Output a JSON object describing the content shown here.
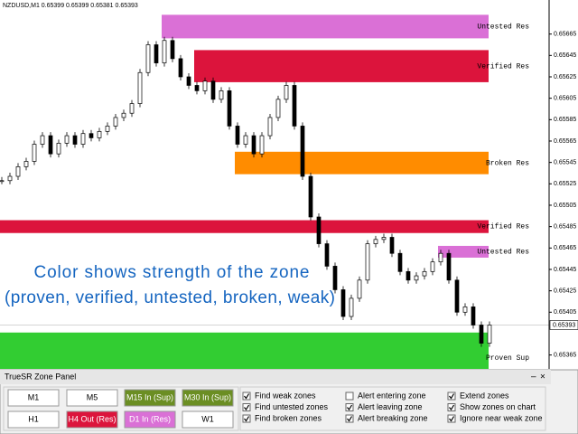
{
  "header": "NZDUSD,M1  0.65399 0.65399 0.65381 0.65393",
  "annotation": [
    "Color shows strength of the zone",
    "(proven, verified, untested, broken, weak)"
  ],
  "chart": {
    "type": "candlestick",
    "ylim": [
      0.65352,
      0.65685
    ],
    "yticks": [
      0.65665,
      0.65645,
      0.65625,
      0.65605,
      0.65585,
      0.65565,
      0.65545,
      0.65525,
      0.65505,
      0.65485,
      0.65465,
      0.65445,
      0.65425,
      0.65405,
      0.65365
    ],
    "last_price": 0.65393,
    "closes": [
      0.65528,
      0.65532,
      0.65541,
      0.65546,
      0.65562,
      0.6557,
      0.65553,
      0.65563,
      0.6557,
      0.65562,
      0.65572,
      0.65568,
      0.65574,
      0.65579,
      0.65587,
      0.65591,
      0.656,
      0.65629,
      0.65655,
      0.65638,
      0.65659,
      0.65642,
      0.65625,
      0.65617,
      0.65612,
      0.65621,
      0.65604,
      0.65612,
      0.65579,
      0.65562,
      0.6557,
      0.65553,
      0.6557,
      0.65587,
      0.65604,
      0.65617,
      0.65579,
      0.65532,
      0.65494,
      0.65469,
      0.65448,
      0.65426,
      0.65401,
      0.65418,
      0.65435,
      0.65469,
      0.65473,
      0.65475,
      0.6546,
      0.65443,
      0.65435,
      0.65439,
      0.65443,
      0.65452,
      0.6546,
      0.65435,
      0.65405,
      0.6541,
      0.65393,
      0.65376,
      0.65393
    ],
    "zones": [
      {
        "label": "Untested Res",
        "color": "#da70d6",
        "low": 0.65661,
        "high": 0.65683,
        "from": 20
      },
      {
        "label": "Verified Res",
        "color": "#dc143c",
        "low": 0.6562,
        "high": 0.6565,
        "from": 24
      },
      {
        "label": "Broken Res",
        "color": "#ff8c00",
        "low": 0.65534,
        "high": 0.65555,
        "from": 29
      },
      {
        "label": "Verified Res",
        "color": "#dc143c",
        "low": 0.65479,
        "high": 0.65491,
        "from": 0
      },
      {
        "label": "Untested Res",
        "color": "#da70d6",
        "low": 0.65456,
        "high": 0.65467,
        "from": 54
      },
      {
        "label": "Proven Sup",
        "color": "#32cd32",
        "low": 0.65352,
        "high": 0.65386,
        "from": 0
      }
    ]
  },
  "panel": {
    "title": "TrueSR Zone Panel",
    "buttons": [
      [
        {
          "label": "M1"
        },
        {
          "label": "M5"
        },
        {
          "label": "M15 In (Sup)",
          "color": "#6b8e23"
        },
        {
          "label": "M30 In (Sup)",
          "color": "#6b8e23"
        }
      ],
      [
        {
          "label": "H1"
        },
        {
          "label": "H4 Out (Res)",
          "color": "#dc143c"
        },
        {
          "label": "D1 In (Res)",
          "color": "#da70d6"
        },
        {
          "label": "W1"
        }
      ]
    ],
    "options": [
      [
        {
          "label": "Find weak zones",
          "checked": true
        },
        {
          "label": "Find untested zones",
          "checked": true
        },
        {
          "label": "Find broken zones",
          "checked": true
        }
      ],
      [
        {
          "label": "Alert entering zone",
          "checked": false
        },
        {
          "label": "Alert leaving zone",
          "checked": true
        },
        {
          "label": "Alert breaking zone",
          "checked": true
        }
      ],
      [
        {
          "label": "Extend zones",
          "checked": true
        },
        {
          "label": "Show zones on chart",
          "checked": true
        },
        {
          "label": "Ignore near weak zone",
          "checked": true
        }
      ]
    ]
  }
}
